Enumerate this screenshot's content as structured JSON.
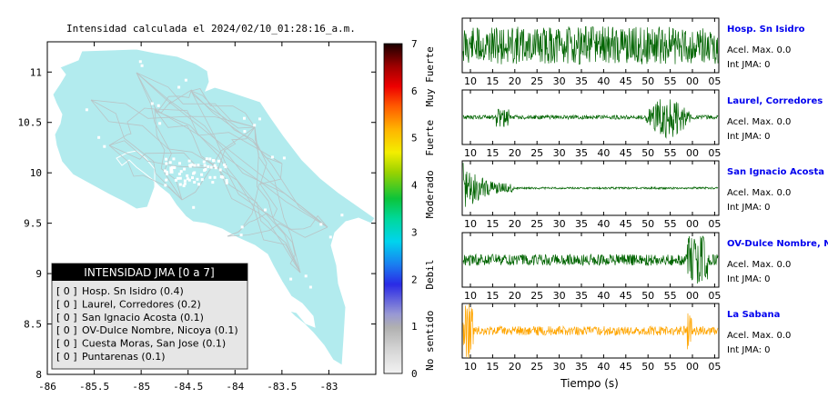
{
  "title": "Intensidad calculada el 2024/02/10_01:28:16_a.m.",
  "map": {
    "x_ticks": [
      "-86",
      "-85.5",
      "-85",
      "-84.5",
      "-84",
      "-83.5",
      "-83"
    ],
    "y_ticks": [
      "11",
      "10.5",
      "10",
      "9.5",
      "9",
      "8.5",
      "8"
    ],
    "xlim": [
      -86,
      -82.5
    ],
    "ylim": [
      8,
      11.3
    ],
    "land_color": "#b2ebee",
    "road_color": "#b9c4c6"
  },
  "legend": {
    "header": "INTENSIDAD JMA [0 a 7]",
    "items": [
      {
        "level": "[ 0 ]",
        "label": "Hosp. Sn Isidro (0.4)"
      },
      {
        "level": "[ 0 ]",
        "label": "Laurel, Corredores (0.2)"
      },
      {
        "level": "[ 0 ]",
        "label": "San Ignacio Acosta (0.1)"
      },
      {
        "level": "[ 0 ]",
        "label": "OV-Dulce Nombre, Nicoya (0.1)"
      },
      {
        "level": "[ 0 ]",
        "label": "Cuesta Moras, San Jose (0.1)"
      },
      {
        "level": "[ 0 ]",
        "label": "Puntarenas (0.1)"
      }
    ]
  },
  "colorbar": {
    "ticks": [
      "0",
      "1",
      "2",
      "3",
      "4",
      "5",
      "6",
      "7"
    ],
    "range": [
      0,
      7
    ],
    "categories": [
      "No sentido",
      "Debil",
      "Moderado",
      "Fuerte",
      "Muy Fuerte"
    ]
  },
  "waveforms": {
    "time_ticks": [
      "10",
      "15",
      "20",
      "25",
      "30",
      "35",
      "40",
      "45",
      "50",
      "55",
      "00",
      "05"
    ],
    "xlabel": "Tiempo (s)",
    "label_color": "#0000ee",
    "stations": [
      {
        "name": "Hosp. Sn Isidro",
        "acel": "Acel. Max. 0.0",
        "jma": "Int JMA: 0",
        "color": "#006400"
      },
      {
        "name": "Laurel, Corredores",
        "acel": "Acel. Max. 0.0",
        "jma": "Int JMA: 0",
        "color": "#006400"
      },
      {
        "name": "San Ignacio Acosta",
        "acel": "Acel. Max. 0.0",
        "jma": "Int JMA: 0",
        "color": "#006400"
      },
      {
        "name": "OV-Dulce Nombre, Nicoya",
        "acel": "Acel. Max. 0.0",
        "jma": "Int JMA: 0",
        "color": "#006400"
      },
      {
        "name": "La Sabana",
        "acel": "Acel. Max. 0.0",
        "jma": "Int JMA: 0",
        "color": "#ffa500"
      }
    ]
  },
  "chart_data": [
    {
      "type": "scatter",
      "title": "Intensidad calculada el 2024/02/10_01:28:16_a.m.",
      "xlabel": "",
      "ylabel": "",
      "xlim": [
        -86,
        -82.5
      ],
      "ylim": [
        8,
        11.3
      ],
      "legend": "bottom-left",
      "series": [
        {
          "name": "INTENSIDAD JMA [0 a 7]",
          "values": [
            0.4,
            0.2,
            0.1,
            0.1,
            0.1,
            0.1
          ]
        }
      ],
      "colorbar_range": [
        0,
        7
      ]
    },
    {
      "type": "line",
      "xlabel": "Tiempo (s)",
      "ylabel": "",
      "x_tick_labels": [
        "10",
        "15",
        "20",
        "25",
        "30",
        "35",
        "40",
        "45",
        "50",
        "55",
        "00",
        "05"
      ],
      "series": [
        {
          "name": "Hosp. Sn Isidro",
          "acel_max": 0.0,
          "int_jma": 0
        },
        {
          "name": "Laurel, Corredores",
          "acel_max": 0.0,
          "int_jma": 0
        },
        {
          "name": "San Ignacio Acosta",
          "acel_max": 0.0,
          "int_jma": 0
        },
        {
          "name": "OV-Dulce Nombre, Nicoya",
          "acel_max": 0.0,
          "int_jma": 0
        },
        {
          "name": "La Sabana",
          "acel_max": 0.0,
          "int_jma": 0
        }
      ]
    }
  ]
}
